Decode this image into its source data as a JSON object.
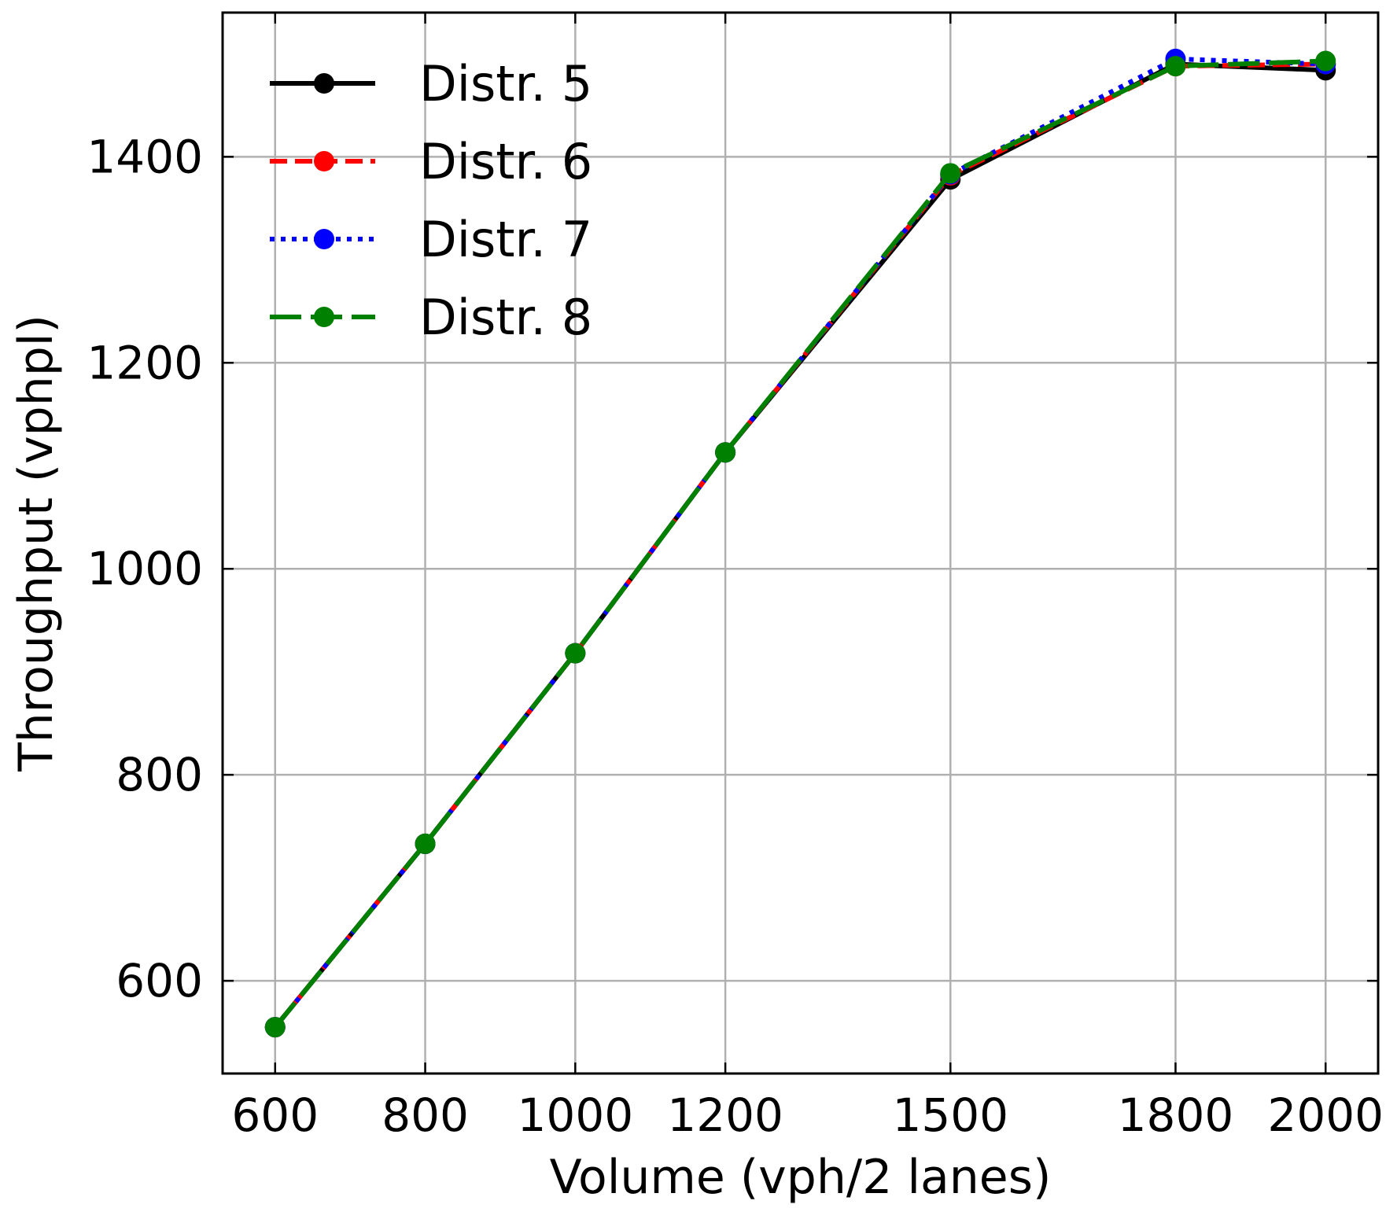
{
  "chart_data": {
    "type": "line",
    "xlabel": "Volume (vph/2 lanes)",
    "ylabel": "Throughput (vphpl)",
    "x": [
      600,
      800,
      1000,
      1200,
      1500,
      1800,
      2000
    ],
    "x_tick_labels": [
      "600",
      "800",
      "1000",
      "1200",
      "1500",
      "1800",
      "2000"
    ],
    "y_ticks": [
      600,
      800,
      1000,
      1200,
      1400
    ],
    "y_tick_labels": [
      "600",
      "800",
      "1000",
      "1200",
      "1400"
    ],
    "xlim": [
      530,
      2070
    ],
    "ylim": [
      510,
      1540
    ],
    "grid": true,
    "legend_position": "top-left",
    "series": [
      {
        "name": "Distr. 5",
        "color": "#000000",
        "dash": "solid",
        "values": [
          555,
          733,
          918,
          1113,
          1378,
          1490,
          1484
        ]
      },
      {
        "name": "Distr. 6",
        "color": "#ff0000",
        "dash": "dashed",
        "values": [
          555,
          733,
          918,
          1113,
          1382,
          1488,
          1490
        ]
      },
      {
        "name": "Distr. 7",
        "color": "#0000ff",
        "dash": "dotted",
        "values": [
          555,
          733,
          918,
          1113,
          1383,
          1495,
          1490
        ]
      },
      {
        "name": "Distr. 8",
        "color": "#008000",
        "dash": "longdash",
        "values": [
          555,
          733,
          918,
          1113,
          1384,
          1488,
          1493
        ]
      }
    ]
  }
}
